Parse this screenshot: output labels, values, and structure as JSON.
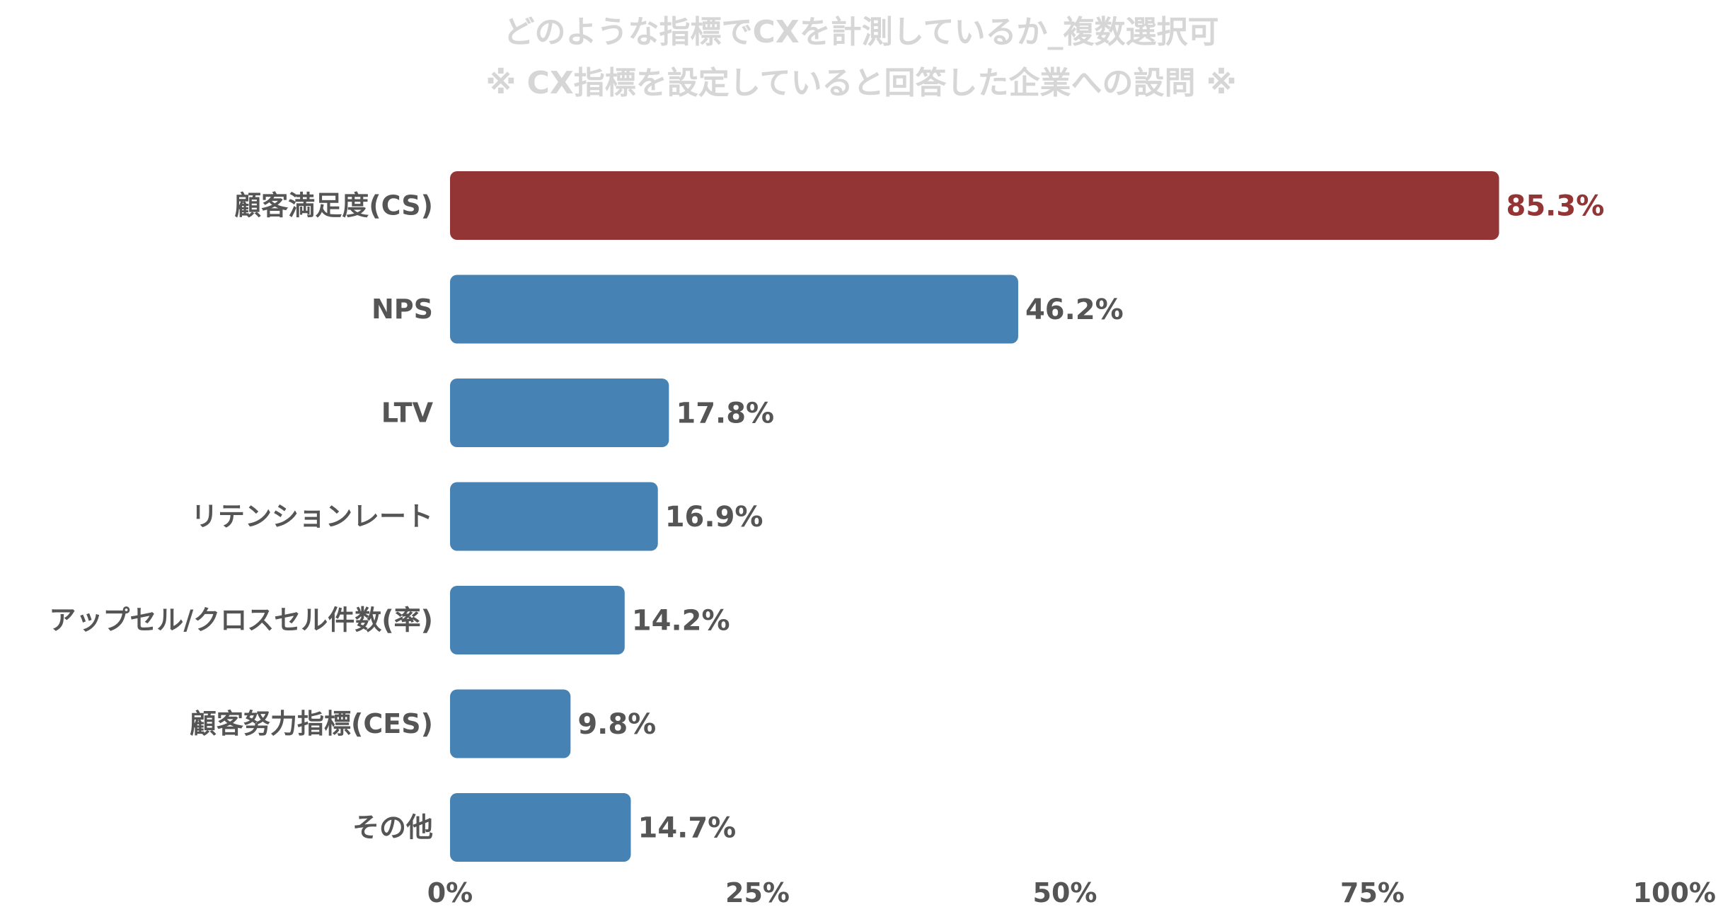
{
  "chart_data": {
    "type": "bar",
    "orientation": "horizontal",
    "title": "どのような指標でCXを計測しているか_複数選択可",
    "subtitle": "※ CX指標を設定していると回答した企業への設問 ※",
    "categories": [
      "顧客満足度(CS)",
      "NPS",
      "LTV",
      "リテンションレート",
      "アップセル/クロスセル件数(率)",
      "顧客努力指標(CES)",
      "その他"
    ],
    "values": [
      85.3,
      46.2,
      17.8,
      16.9,
      14.2,
      9.8,
      14.7
    ],
    "value_labels": [
      "85.3%",
      "46.2%",
      "17.8%",
      "16.9%",
      "14.2%",
      "9.8%",
      "14.7%"
    ],
    "highlight_index": 0,
    "xlim": [
      0,
      100
    ],
    "x_ticks": [
      "0%",
      "25%",
      "50%",
      "75%",
      "100%"
    ],
    "x_tick_values": [
      0,
      25,
      50,
      75,
      100
    ],
    "grid": false,
    "legend": "none",
    "colors": {
      "highlight": "#943535",
      "bar": "#4682b4",
      "title": "#d6d6d6",
      "text": "#555555"
    }
  }
}
